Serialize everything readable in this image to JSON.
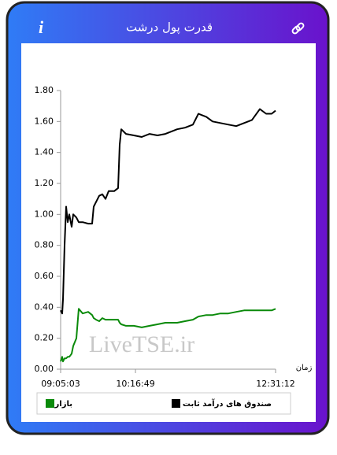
{
  "chart_data": {
    "type": "line",
    "title": "قدرت پول درشت",
    "watermark": "LiveTSE.ir",
    "x_label": "زمان",
    "x": [
      32703,
      32794,
      32839,
      32930,
      33020,
      33111,
      33201,
      33337,
      33428,
      33609,
      33745,
      33972,
      34289,
      34515,
      34606,
      34742,
      34923,
      35104,
      35286,
      35467,
      35784,
      36011,
      36101,
      36192,
      36464,
      36917,
      37370,
      37823,
      38276,
      38729,
      39409,
      39862,
      40315,
      40632,
      41085,
      41448,
      41901,
      42354,
      42807,
      43260,
      43713,
      44166,
      44529,
      44846,
      45072
    ],
    "series": [
      {
        "name": "صندوق های درآمد ثابت",
        "color": "#000000",
        "values": [
          0.38,
          0.36,
          0.45,
          0.8,
          1.05,
          0.95,
          1.0,
          0.92,
          1.0,
          0.98,
          0.95,
          0.95,
          0.94,
          0.94,
          1.05,
          1.08,
          1.12,
          1.13,
          1.1,
          1.15,
          1.15,
          1.17,
          1.45,
          1.55,
          1.52,
          1.51,
          1.5,
          1.52,
          1.51,
          1.52,
          1.55,
          1.56,
          1.58,
          1.65,
          1.63,
          1.6,
          1.59,
          1.58,
          1.57,
          1.59,
          1.61,
          1.68,
          1.65,
          1.65,
          1.67
        ]
      },
      {
        "name": "بازار",
        "color": "#0a8a0a",
        "values": [
          0.05,
          0.08,
          0.05,
          0.07,
          0.07,
          0.08,
          0.08,
          0.1,
          0.15,
          0.2,
          0.39,
          0.36,
          0.37,
          0.35,
          0.33,
          0.32,
          0.31,
          0.33,
          0.32,
          0.32,
          0.32,
          0.32,
          0.3,
          0.29,
          0.28,
          0.28,
          0.27,
          0.28,
          0.29,
          0.3,
          0.3,
          0.31,
          0.32,
          0.34,
          0.35,
          0.35,
          0.36,
          0.36,
          0.37,
          0.38,
          0.38,
          0.38,
          0.38,
          0.38,
          0.39
        ]
      }
    ],
    "xlim": [
      32703,
      45072
    ],
    "xticks": [
      {
        "value": 32703,
        "label": "09:05:03"
      },
      {
        "value": 37009,
        "label": "10:16:49"
      },
      {
        "value": 45072,
        "label": "12:31:12"
      }
    ],
    "ylim": [
      0,
      1.8
    ],
    "yticks": [
      {
        "value": 0,
        "label": "0.00"
      },
      {
        "value": 0.2,
        "label": "0.20"
      },
      {
        "value": 0.4,
        "label": "0.40"
      },
      {
        "value": 0.6,
        "label": "0.60"
      },
      {
        "value": 0.8,
        "label": "0.80"
      },
      {
        "value": 1.0,
        "label": "1.00"
      },
      {
        "value": 1.2,
        "label": "1.20"
      },
      {
        "value": 1.4,
        "label": "1.40"
      },
      {
        "value": 1.6,
        "label": "1.60"
      },
      {
        "value": 1.8,
        "label": "1.80"
      }
    ],
    "grid": false
  }
}
